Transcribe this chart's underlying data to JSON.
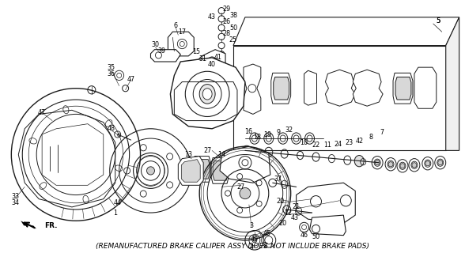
{
  "footnote": "(REMANUFACTURED BRAKE CALIPER ASSY DOES NOT INCLUDE BRAKE PADS)",
  "footnote_fontsize": 6.5,
  "bg_color": "#ffffff",
  "fig_width": 5.88,
  "fig_height": 3.2,
  "dpi": 100,
  "lc": "#1a1a1a",
  "gray": "#888888",
  "darkgray": "#555555"
}
